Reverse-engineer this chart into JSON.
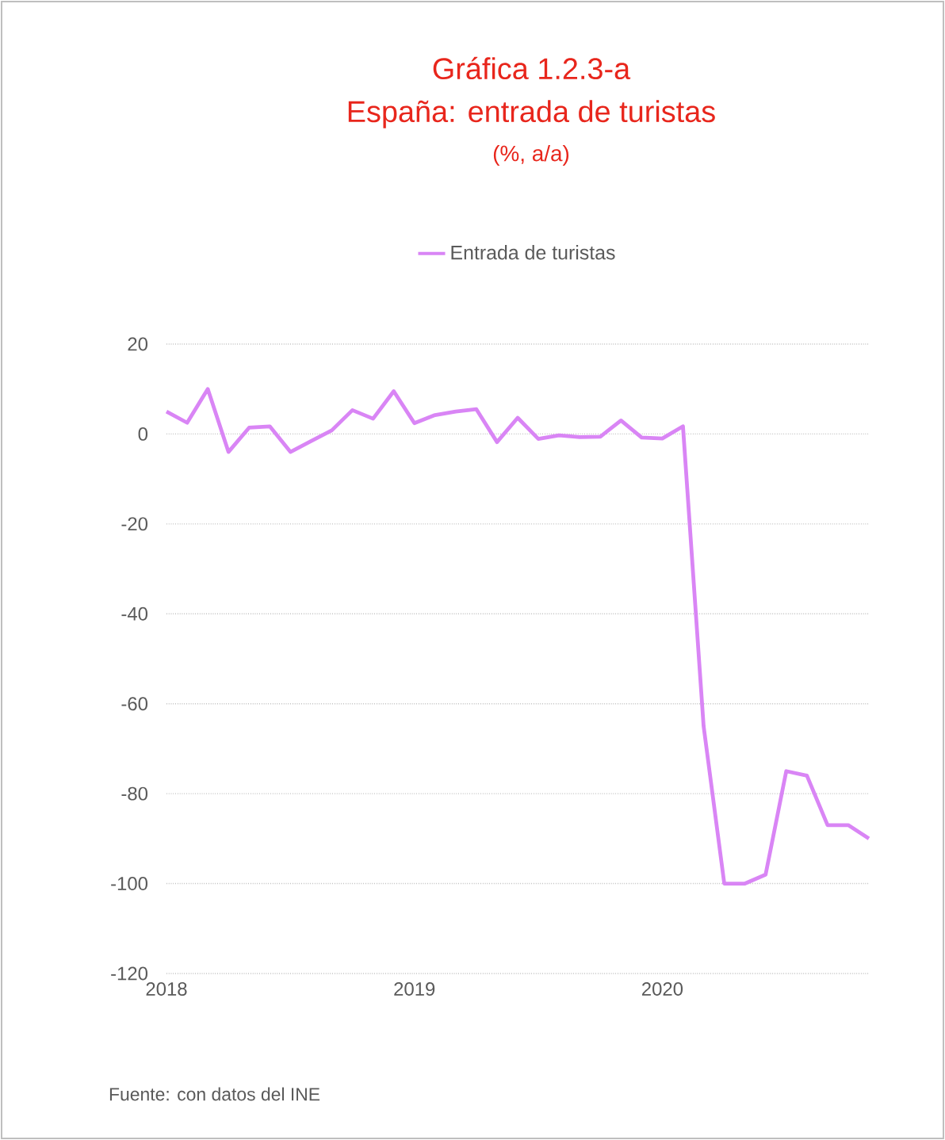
{
  "chart_data": {
    "type": "line",
    "title": "Gráfica 1.2.3-a",
    "subtitle": "España: entrada de turistas",
    "x": [
      "2018-01",
      "2018-02",
      "2018-03",
      "2018-04",
      "2018-05",
      "2018-06",
      "2018-07",
      "2018-08",
      "2018-09",
      "2018-10",
      "2018-11",
      "2018-12",
      "2019-01",
      "2019-02",
      "2019-03",
      "2019-04",
      "2019-05",
      "2019-06",
      "2019-07",
      "2019-08",
      "2019-09",
      "2019-10",
      "2019-11",
      "2019-12",
      "2020-01",
      "2020-02",
      "2020-03",
      "2020-04",
      "2020-05",
      "2020-06",
      "2020-07",
      "2020-08",
      "2020-09",
      "2020-10",
      "2020-11"
    ],
    "series": [
      {
        "name": "Entrada de turistas",
        "color": "#d985f5",
        "values": [
          5.0,
          2.5,
          10,
          -4,
          1.4,
          1.7,
          -4,
          -1.6,
          0.8,
          5.3,
          3.4,
          9.5,
          2.4,
          4.2,
          5.0,
          5.5,
          -1.8,
          3.6,
          -1.1,
          -0.3,
          -0.7,
          -0.6,
          3.0,
          -0.8,
          -1.0,
          1.7,
          -65,
          -100,
          -100,
          -98,
          -75,
          -76,
          -87,
          -87,
          -90
        ]
      }
    ],
    "xlim": [
      "2018-01",
      "2020-11"
    ],
    "xticks": [
      {
        "value": "2018-01",
        "label": "2018"
      },
      {
        "value": "2019-01",
        "label": "2019"
      },
      {
        "value": "2020-01",
        "label": "2020"
      }
    ],
    "ylim": [
      -120,
      20
    ],
    "yticks": [
      -120,
      -100,
      -80,
      -60,
      -40,
      -20,
      0,
      20
    ],
    "grid": "y",
    "legend": "top",
    "annotations": [
      "(%, a/a)",
      "Fuente: con datos del INE"
    ]
  }
}
